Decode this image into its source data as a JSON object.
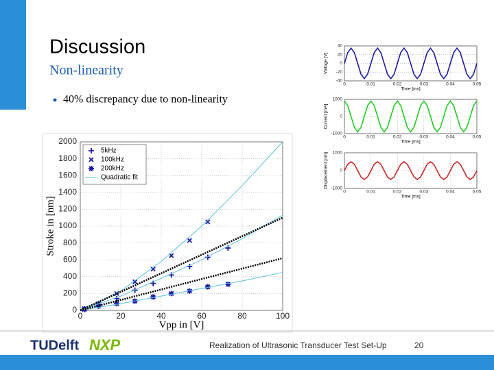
{
  "slide": {
    "title": "Discussion",
    "subtitle": "Non-linearity",
    "bullets": [
      "40% discrepancy due to non-linearity"
    ]
  },
  "footer": {
    "logos": [
      "TUDelft",
      "NXP"
    ],
    "text": "Realization of Ultrasonic Transducer Test Set-Up",
    "page": "20"
  },
  "chart_data": [
    {
      "type": "scatter",
      "xlabel": "Vpp in [V]",
      "ylabel": "Stroke in [nm]",
      "xlim": [
        0,
        100
      ],
      "ylim": [
        0,
        2000
      ],
      "xticks": [
        0,
        20,
        40,
        60,
        80,
        100
      ],
      "yticks": [
        0,
        200,
        400,
        600,
        800,
        1000,
        1200,
        1400,
        1600,
        1800,
        2000
      ],
      "grid": true,
      "legend": "upper left",
      "series": [
        {
          "name": "5kHz",
          "color": "#1a1aa6",
          "marker": "plus",
          "x": [
            2,
            9,
            18,
            27,
            36,
            45,
            54,
            63,
            73
          ],
          "values": [
            20,
            70,
            140,
            240,
            320,
            420,
            520,
            630,
            740
          ]
        },
        {
          "name": "100kHz",
          "color": "#1a1aa6",
          "marker": "cross",
          "x": [
            2,
            9,
            18,
            27,
            36,
            45,
            54,
            63
          ],
          "values": [
            20,
            80,
            200,
            340,
            490,
            650,
            830,
            1050
          ]
        },
        {
          "name": "200kHz",
          "color": "#1a1aa6",
          "marker": "star",
          "x": [
            2,
            9,
            18,
            27,
            36,
            45,
            54,
            63,
            73
          ],
          "values": [
            10,
            50,
            80,
            110,
            160,
            200,
            230,
            280,
            310
          ]
        },
        {
          "name": "Quadratic fit",
          "color": "#5bc0de",
          "style": "line",
          "x": [
            0,
            20,
            40,
            60,
            80,
            100,
            100,
            0,
            20,
            40,
            60,
            80,
            100,
            100,
            0,
            20,
            40,
            60,
            80,
            100
          ],
          "values": [
            0,
            230,
            580,
            1000,
            1480,
            2000,
            null,
            0,
            170,
            380,
            600,
            850,
            1130,
            null,
            0,
            80,
            170,
            260,
            350,
            450
          ]
        },
        {
          "color": "#000000",
          "style": "dotted",
          "x": [
            0,
            100,
            100,
            0,
            100
          ],
          "values": [
            0,
            1100,
            null,
            0,
            620
          ]
        }
      ]
    },
    {
      "type": "line",
      "xlabel": "Time [ms]",
      "ylabel": "Voltage [V]",
      "color": "#1a1aa6",
      "xlim": [
        0,
        0.05
      ],
      "ylim": [
        -40,
        40
      ],
      "xticks": [
        0,
        0.01,
        0.02,
        0.03,
        0.04,
        0.05
      ],
      "yticks": [
        40,
        20,
        0,
        -20,
        -40
      ],
      "grid": true,
      "x": [
        0,
        0.00125,
        0.0025,
        0.00375,
        0.005,
        0.00625,
        0.0075,
        0.00875,
        0.01,
        0.01125,
        0.0125,
        0.01375,
        0.015,
        0.01625,
        0.0175,
        0.01875,
        0.02,
        0.02125,
        0.0225,
        0.02375,
        0.025,
        0.02625,
        0.0275,
        0.02875,
        0.03,
        0.03125,
        0.0325,
        0.03375,
        0.035,
        0.03625,
        0.0375,
        0.03875,
        0.04,
        0.04125,
        0.0425,
        0.04375,
        0.045,
        0.04625,
        0.0475,
        0.04875,
        0.05
      ],
      "values": [
        0,
        24.7,
        35,
        24.7,
        0,
        -24.7,
        -35,
        -24.7,
        0,
        24.7,
        35,
        24.7,
        0,
        -24.7,
        -35,
        -24.7,
        0,
        24.7,
        35,
        24.7,
        0,
        -24.7,
        -35,
        -24.7,
        0,
        24.7,
        35,
        24.7,
        0,
        -24.7,
        -35,
        -24.7,
        0,
        24.7,
        35,
        24.7,
        0,
        -24.7,
        -35,
        -24.7,
        0
      ]
    },
    {
      "type": "line",
      "xlabel": "Time [ms]",
      "ylabel": "Current [mA]",
      "color": "#22cc22",
      "xlim": [
        0,
        0.05
      ],
      "ylim": [
        -1000,
        1000
      ],
      "xticks": [
        0,
        0.01,
        0.02,
        0.03,
        0.04,
        0.05
      ],
      "yticks": [
        1000,
        0,
        -1000
      ],
      "grid": true,
      "x": [
        0,
        0.00125,
        0.0025,
        0.00375,
        0.005,
        0.00625,
        0.0075,
        0.00875,
        0.01,
        0.01125,
        0.0125,
        0.01375,
        0.015,
        0.01625,
        0.0175,
        0.01875,
        0.02,
        0.02125,
        0.0225,
        0.02375,
        0.025,
        0.02625,
        0.0275,
        0.02875,
        0.03,
        0.03125,
        0.0325,
        0.03375,
        0.035,
        0.03625,
        0.0375,
        0.03875,
        0.04,
        0.04125,
        0.0425,
        0.04375,
        0.045,
        0.04625,
        0.0475,
        0.04875,
        0.05
      ],
      "values": [
        900,
        636,
        0,
        -636,
        -900,
        -636,
        0,
        636,
        900,
        636,
        0,
        -636,
        -900,
        -636,
        0,
        636,
        900,
        636,
        0,
        -636,
        -900,
        -636,
        0,
        636,
        900,
        636,
        0,
        -636,
        -900,
        -636,
        0,
        636,
        900,
        636,
        0,
        -636,
        -900,
        -636,
        0,
        636,
        900
      ]
    },
    {
      "type": "line",
      "xlabel": "Time [ms]",
      "ylabel": "Displacement [nm]",
      "color": "#cc2222",
      "xlim": [
        0,
        0.05
      ],
      "ylim": [
        -1000,
        1000
      ],
      "xticks": [
        0,
        0.01,
        0.02,
        0.03,
        0.04,
        0.05
      ],
      "yticks": [
        1000,
        0,
        -1000
      ],
      "grid": true,
      "x": [
        0,
        0.00125,
        0.0025,
        0.00375,
        0.005,
        0.00625,
        0.0075,
        0.00875,
        0.01,
        0.01125,
        0.0125,
        0.01375,
        0.015,
        0.01625,
        0.0175,
        0.01875,
        0.02,
        0.02125,
        0.0225,
        0.02375,
        0.025,
        0.02625,
        0.0275,
        0.02875,
        0.03,
        0.03125,
        0.0325,
        0.03375,
        0.035,
        0.03625,
        0.0375,
        0.03875,
        0.04,
        0.04125,
        0.0425,
        0.04375,
        0.045,
        0.04625,
        0.0475,
        0.04875,
        0.05
      ],
      "values": [
        0,
        354,
        500,
        354,
        0,
        -354,
        -500,
        -354,
        0,
        354,
        500,
        354,
        0,
        -354,
        -500,
        -354,
        0,
        354,
        500,
        354,
        0,
        -354,
        -500,
        -354,
        0,
        354,
        500,
        354,
        0,
        -354,
        -500,
        -354,
        0,
        354,
        500,
        354,
        0,
        -354,
        -500,
        -354,
        0
      ]
    }
  ]
}
